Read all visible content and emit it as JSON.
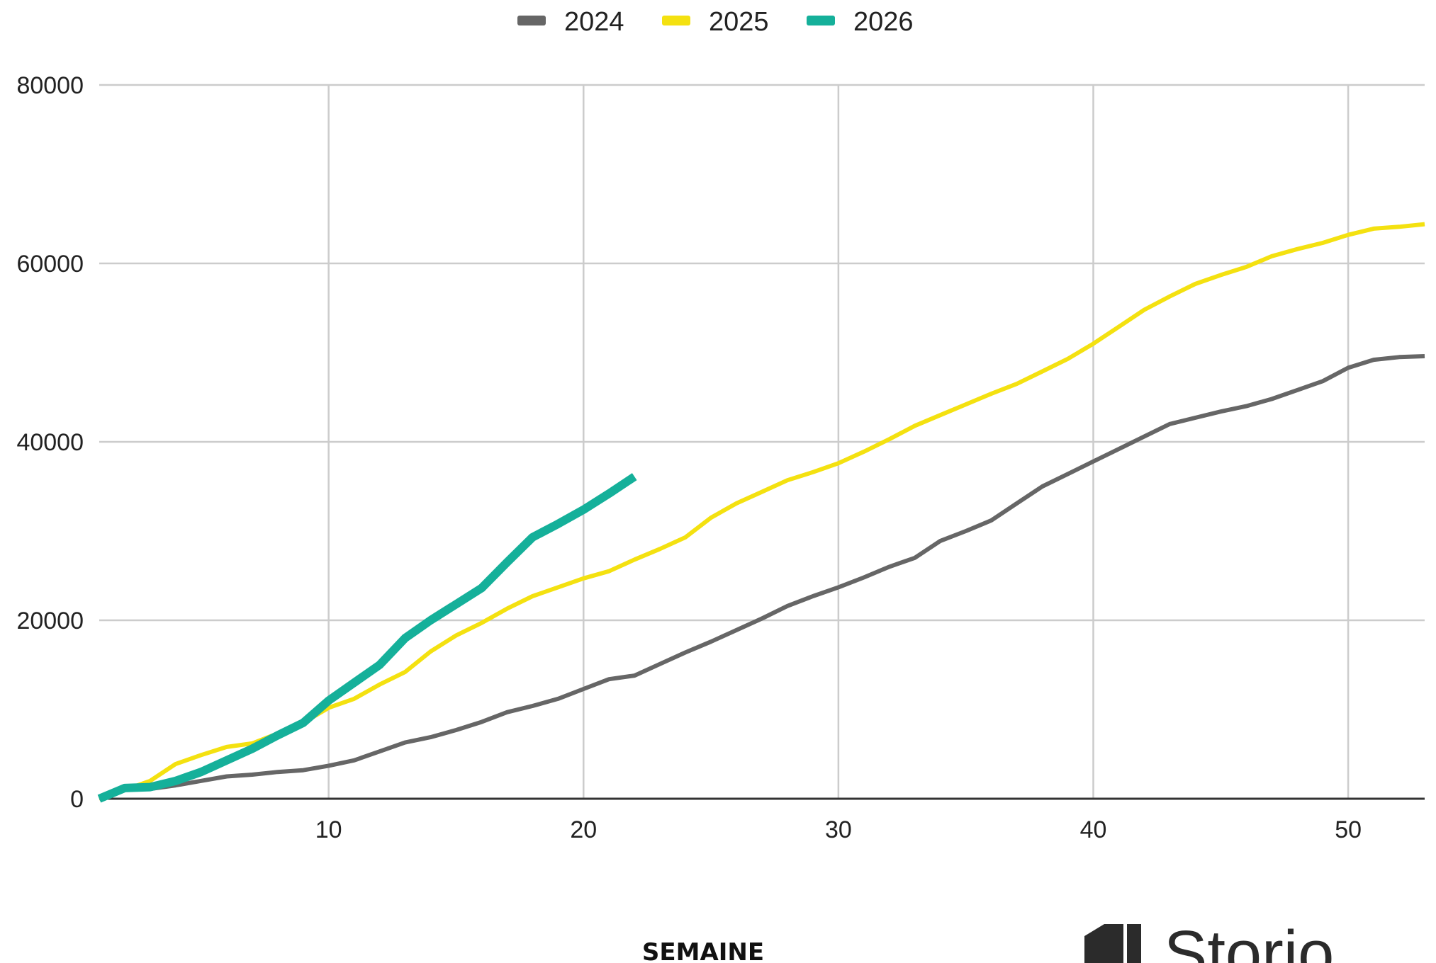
{
  "chart_data": {
    "type": "line",
    "xlabel": "SEMAINE",
    "ylabel": "",
    "xlim": [
      1,
      53
    ],
    "ylim": [
      0,
      80000
    ],
    "x_ticks": [
      10,
      20,
      30,
      40,
      50
    ],
    "y_ticks": [
      0,
      20000,
      40000,
      60000,
      80000
    ],
    "grid": true,
    "legend_position": "top-center",
    "series": [
      {
        "name": "2024",
        "color": "#666666",
        "x": [
          1,
          2,
          3,
          4,
          5,
          6,
          7,
          8,
          9,
          10,
          11,
          12,
          13,
          14,
          15,
          16,
          17,
          18,
          19,
          20,
          21,
          22,
          23,
          24,
          25,
          26,
          27,
          28,
          29,
          30,
          31,
          32,
          33,
          34,
          35,
          36,
          37,
          38,
          39,
          40,
          41,
          42,
          43,
          44,
          45,
          46,
          47,
          48,
          49,
          50,
          51,
          52,
          53
        ],
        "values": [
          0,
          1000,
          1100,
          1500,
          2000,
          2500,
          2700,
          3000,
          3200,
          3700,
          4300,
          5300,
          6300,
          6900,
          7700,
          8600,
          9700,
          10400,
          11200,
          12300,
          13400,
          13800,
          15100,
          16400,
          17600,
          18900,
          20200,
          21600,
          22700,
          23700,
          24800,
          26000,
          27000,
          28900,
          30000,
          31200,
          33100,
          35000,
          36400,
          37800,
          39200,
          40600,
          42000,
          42700,
          43400,
          44000,
          44800,
          45800,
          46800,
          48300,
          49200,
          49500,
          49600
        ]
      },
      {
        "name": "2025",
        "color": "#f4e110",
        "x": [
          1,
          2,
          3,
          4,
          5,
          6,
          7,
          8,
          9,
          10,
          11,
          12,
          13,
          14,
          15,
          16,
          17,
          18,
          19,
          20,
          21,
          22,
          23,
          24,
          25,
          26,
          27,
          28,
          29,
          30,
          31,
          32,
          33,
          34,
          35,
          36,
          37,
          38,
          39,
          40,
          41,
          42,
          43,
          44,
          45,
          46,
          47,
          48,
          49,
          50,
          51,
          52,
          53
        ],
        "values": [
          0,
          1000,
          2000,
          3900,
          4900,
          5800,
          6200,
          7300,
          8500,
          10200,
          11200,
          12800,
          14200,
          16500,
          18300,
          19700,
          21300,
          22700,
          23700,
          24700,
          25500,
          26800,
          28000,
          29300,
          31500,
          33100,
          34400,
          35700,
          36600,
          37600,
          38900,
          40300,
          41800,
          43000,
          44200,
          45400,
          46500,
          47900,
          49300,
          51000,
          52900,
          54800,
          56300,
          57700,
          58700,
          59600,
          60800,
          61600,
          62300,
          63200,
          63900,
          64100,
          64400
        ]
      },
      {
        "name": "2026",
        "color": "#15b09a",
        "x": [
          1,
          2,
          3,
          4,
          5,
          6,
          7,
          8,
          9,
          10,
          11,
          12,
          13,
          14,
          15,
          16,
          17,
          18,
          19,
          20,
          21,
          22
        ],
        "values": [
          0,
          1200,
          1300,
          2000,
          3000,
          4300,
          5600,
          7100,
          8500,
          11000,
          13000,
          15000,
          18000,
          20000,
          21800,
          23600,
          26500,
          29300,
          30800,
          32400,
          34200,
          36100
        ]
      }
    ]
  },
  "logo": {
    "text": "Storio"
  }
}
